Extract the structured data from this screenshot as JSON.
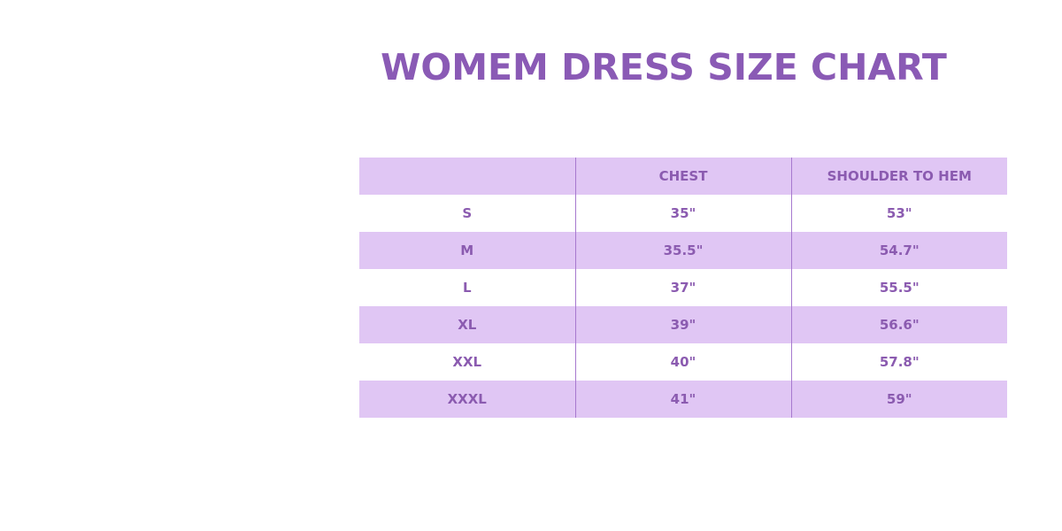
{
  "title": "WOMEM DRESS SIZE CHART",
  "colors": {
    "accent": "#8a5ab5",
    "row_shade": "#e0c6f4"
  },
  "table": {
    "headers": [
      "",
      "CHEST",
      "SHOULDER TO HEM"
    ],
    "rows": [
      [
        "S",
        "35\"",
        "53\""
      ],
      [
        "M",
        "35.5\"",
        "54.7\""
      ],
      [
        "L",
        "37\"",
        "55.5\""
      ],
      [
        "XL",
        "39\"",
        "56.6\""
      ],
      [
        "XXL",
        "40\"",
        "57.8\""
      ],
      [
        "XXXL",
        "41\"",
        "59\""
      ]
    ]
  }
}
